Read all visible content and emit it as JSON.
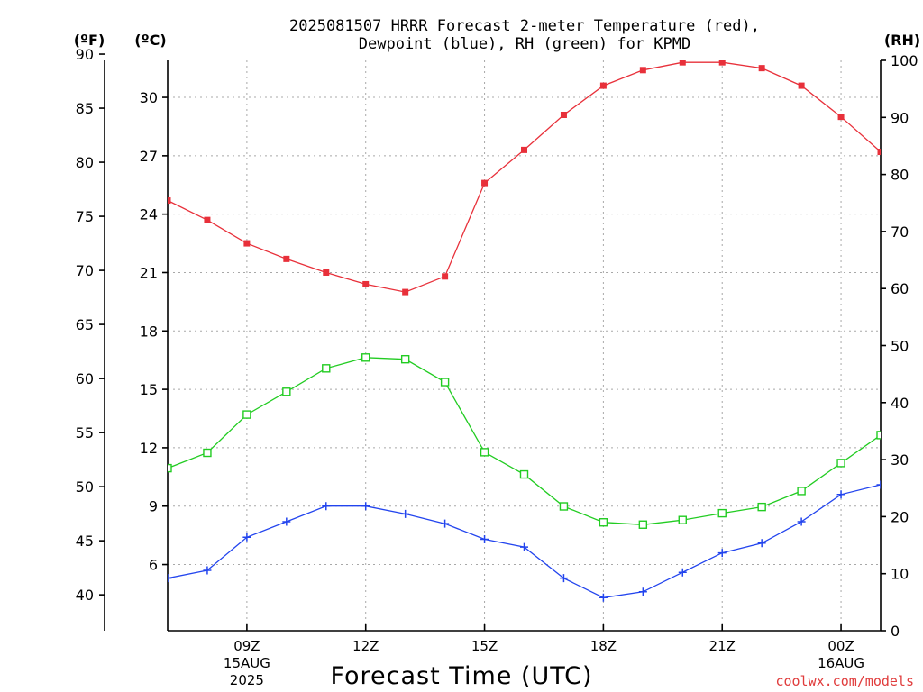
{
  "chart_data": {
    "type": "line",
    "title_line1": "2025081507 HRRR Forecast 2-meter Temperature (red),",
    "title_line2": "Dewpoint (blue), RH (green) for KPMD",
    "xlabel": "Forecast Time (UTC)",
    "credit": "coolwx.com/models",
    "units": {
      "fahrenheit": "(ºF)",
      "celsius": "(ºC)",
      "rh": "(RH)"
    },
    "x_hours": [
      7,
      8,
      9,
      10,
      11,
      12,
      13,
      14,
      15,
      16,
      17,
      18,
      19,
      20,
      21,
      22,
      23,
      24,
      25
    ],
    "x_range": [
      7,
      25
    ],
    "x_ticks": [
      {
        "hour": 9,
        "label": "09Z",
        "date": "15AUG",
        "year": "2025"
      },
      {
        "hour": 12,
        "label": "12Z"
      },
      {
        "hour": 15,
        "label": "15Z"
      },
      {
        "hour": 18,
        "label": "18Z"
      },
      {
        "hour": 21,
        "label": "21Z"
      },
      {
        "hour": 24,
        "label": "00Z",
        "date": "16AUG"
      }
    ],
    "celsius_axis": {
      "range": [
        2.6,
        31.9
      ],
      "ticks": [
        6,
        9,
        12,
        15,
        18,
        21,
        24,
        27,
        30
      ]
    },
    "fahrenheit_axis": {
      "ticks": [
        40,
        45,
        50,
        55,
        60,
        65,
        70,
        75,
        80,
        85,
        90
      ]
    },
    "rh_axis": {
      "range": [
        0,
        100
      ],
      "ticks": [
        0,
        10,
        20,
        30,
        40,
        50,
        60,
        70,
        80,
        90,
        100
      ]
    },
    "series": [
      {
        "name": "Temperature",
        "axis": "celsius",
        "color": "#e8303a",
        "marker": "filled-square",
        "values": [
          24.7,
          23.7,
          22.5,
          21.7,
          21.0,
          20.4,
          20.0,
          20.8,
          25.6,
          27.3,
          29.1,
          30.6,
          31.4,
          31.8,
          31.8,
          31.5,
          30.6,
          29.0,
          27.2
        ]
      },
      {
        "name": "Dewpoint",
        "axis": "celsius",
        "color": "#2244ee",
        "marker": "plus",
        "values": [
          5.3,
          5.7,
          7.4,
          8.2,
          9.0,
          9.0,
          8.6,
          8.1,
          7.3,
          6.9,
          5.3,
          4.3,
          4.6,
          5.6,
          6.6,
          7.1,
          8.2,
          9.6,
          10.1
        ]
      },
      {
        "name": "RH",
        "axis": "rh",
        "color": "#22cc22",
        "marker": "open-square",
        "values": [
          28.5,
          31.2,
          37.9,
          41.9,
          46.0,
          47.9,
          47.6,
          43.6,
          31.3,
          27.4,
          21.8,
          19.0,
          18.6,
          19.4,
          20.6,
          21.7,
          24.5,
          29.4,
          34.3
        ]
      }
    ]
  }
}
